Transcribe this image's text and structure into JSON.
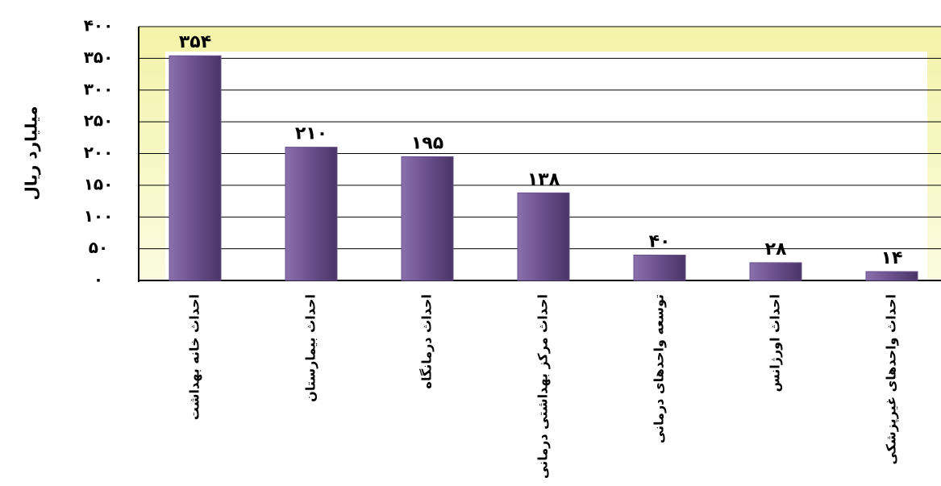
{
  "chart_data": {
    "type": "bar",
    "y_label": "میلیارد ریال",
    "categories": [
      "احداث خانه بهداشت",
      "احداث بیمارستان",
      "احداث درمانگاه",
      "احداث مرکز بهداشتی درمانی",
      "توسعه واحدهای درمانی",
      "احداث اورژانس",
      "احداث واحدهای غیرپزشکی"
    ],
    "values": [
      354,
      210,
      195,
      138,
      40,
      28,
      14
    ],
    "value_labels": [
      "۳۵۴",
      "۲۱۰",
      "۱۹۵",
      "۱۳۸",
      "۴۰",
      "۲۸",
      "۱۴"
    ],
    "color": "#6a4f8c",
    "ylim": [
      0,
      400
    ],
    "yticks": [
      {
        "value": 0,
        "label": "۰"
      },
      {
        "value": 50,
        "label": "۵۰"
      },
      {
        "value": 100,
        "label": "۱۰۰"
      },
      {
        "value": 150,
        "label": "۱۵۰"
      },
      {
        "value": 200,
        "label": "۲۰۰"
      },
      {
        "value": 250,
        "label": "۲۵۰"
      },
      {
        "value": 300,
        "label": "۳۰۰"
      },
      {
        "value": 350,
        "label": "۳۵۰"
      },
      {
        "value": 400,
        "label": "۴۰۰"
      }
    ],
    "grid": true
  }
}
